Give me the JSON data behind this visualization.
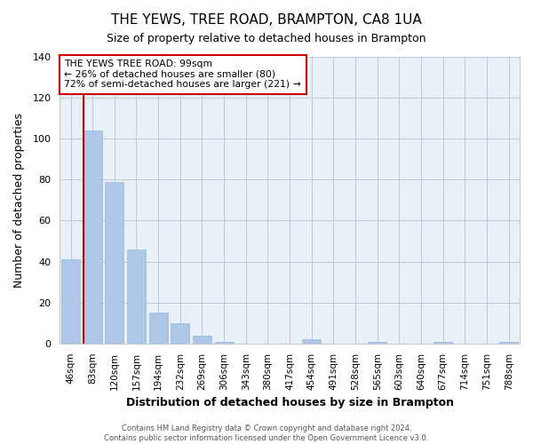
{
  "title": "THE YEWS, TREE ROAD, BRAMPTON, CA8 1UA",
  "subtitle": "Size of property relative to detached houses in Brampton",
  "xlabel": "Distribution of detached houses by size in Brampton",
  "ylabel": "Number of detached properties",
  "bar_labels": [
    "46sqm",
    "83sqm",
    "120sqm",
    "157sqm",
    "194sqm",
    "232sqm",
    "269sqm",
    "306sqm",
    "343sqm",
    "380sqm",
    "417sqm",
    "454sqm",
    "491sqm",
    "528sqm",
    "565sqm",
    "603sqm",
    "640sqm",
    "677sqm",
    "714sqm",
    "751sqm",
    "788sqm"
  ],
  "bar_values": [
    41,
    104,
    79,
    46,
    15,
    10,
    4,
    1,
    0,
    0,
    0,
    2,
    0,
    0,
    1,
    0,
    0,
    1,
    0,
    0,
    1
  ],
  "bar_color": "#aec6e8",
  "bar_edge_color": "#9ab8dc",
  "property_line_color": "#cc0000",
  "property_line_x": 0.55,
  "ylim": [
    0,
    140
  ],
  "yticks": [
    0,
    20,
    40,
    60,
    80,
    100,
    120,
    140
  ],
  "annotation_title": "THE YEWS TREE ROAD: 99sqm",
  "annotation_line1": "← 26% of detached houses are smaller (80)",
  "annotation_line2": "72% of semi-detached houses are larger (221) →",
  "annotation_box_color": "#ffffff",
  "annotation_box_edgecolor": "#cc0000",
  "footer1": "Contains HM Land Registry data © Crown copyright and database right 2024.",
  "footer2": "Contains public sector information licensed under the Open Government Licence v3.0.",
  "background_color": "#ffffff",
  "plot_bg_color": "#e8f0f8",
  "grid_color": "#c0c8d8"
}
